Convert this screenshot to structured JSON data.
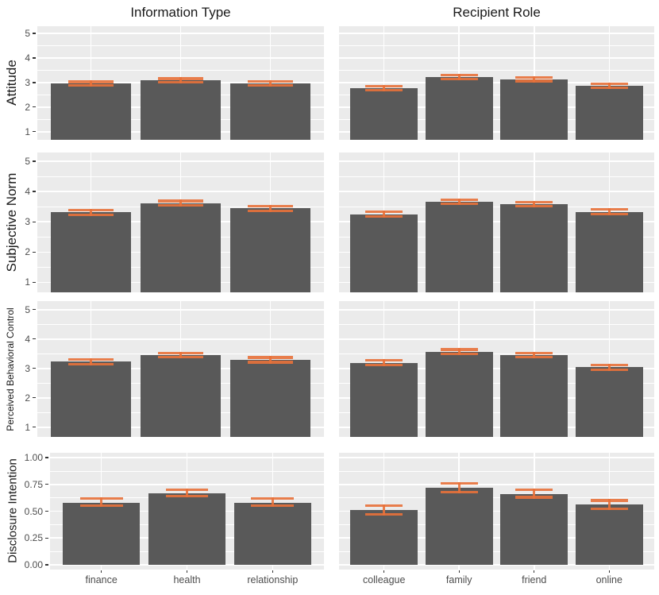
{
  "chart_data": {
    "type": "bar",
    "figure_kind": "faceted bar chart grid with mean bars and error bars (ggplot style)",
    "grid": {
      "rows": 4,
      "cols": 2
    },
    "column_titles": [
      "Information Type",
      "Recipient Role"
    ],
    "legend": "none",
    "colors": {
      "bar_fill": "#595959",
      "error_bar": "#E8713A",
      "panel_background": "#EBEBEB",
      "gridline": "#FFFFFF",
      "tick_label_text": "#4D4D4D",
      "axis_title_text": "#1A1A1A"
    },
    "x_categories": {
      "information_type": [
        "finance",
        "health",
        "relationship"
      ],
      "recipient_role": [
        "colleague",
        "family",
        "friend",
        "online"
      ]
    },
    "rows": [
      {
        "ylabel": "Attitude",
        "yticks": [
          1,
          2,
          3,
          4,
          5
        ],
        "ytick_labels": [
          "1",
          "2",
          "3",
          "4",
          "5"
        ],
        "minor_ticks": [
          1.5,
          2.5,
          3.5,
          4.5
        ],
        "ylim": [
          0.67,
          5.29
        ],
        "show_x_labels": false,
        "panels": [
          {
            "column_title": "Information Type",
            "categories": [
              "finance",
              "health",
              "relationship"
            ],
            "means": [
              2.95,
              3.09,
              2.96
            ],
            "err_low": [
              2.87,
              3.02,
              2.88
            ],
            "err_high": [
              3.03,
              3.16,
              3.04
            ]
          },
          {
            "column_title": "Recipient Role",
            "categories": [
              "colleague",
              "family",
              "friend",
              "online"
            ],
            "means": [
              2.76,
              3.22,
              3.13,
              2.87
            ],
            "err_low": [
              2.68,
              3.15,
              3.06,
              2.79
            ],
            "err_high": [
              2.84,
              3.29,
              3.2,
              2.95
            ]
          }
        ]
      },
      {
        "ylabel": "Subjective Norm",
        "yticks": [
          1,
          2,
          3,
          4,
          5
        ],
        "ytick_labels": [
          "1",
          "2",
          "3",
          "4",
          "5"
        ],
        "minor_ticks": [
          1.5,
          2.5,
          3.5,
          4.5
        ],
        "ylim": [
          0.67,
          5.29
        ],
        "show_x_labels": false,
        "panels": [
          {
            "column_title": "Information Type",
            "categories": [
              "finance",
              "health",
              "relationship"
            ],
            "means": [
              3.31,
              3.62,
              3.45
            ],
            "err_low": [
              3.23,
              3.55,
              3.37
            ],
            "err_high": [
              3.39,
              3.69,
              3.52
            ]
          },
          {
            "column_title": "Recipient Role",
            "categories": [
              "colleague",
              "family",
              "friend",
              "online"
            ],
            "means": [
              3.25,
              3.66,
              3.58,
              3.33
            ],
            "err_low": [
              3.17,
              3.59,
              3.51,
              3.25
            ],
            "err_high": [
              3.33,
              3.73,
              3.65,
              3.41
            ]
          }
        ]
      },
      {
        "ylabel": "Perceived Behavioral Control",
        "yticks": [
          1,
          2,
          3,
          4,
          5
        ],
        "ytick_labels": [
          "1",
          "2",
          "3",
          "4",
          "5"
        ],
        "minor_ticks": [
          1.5,
          2.5,
          3.5,
          4.5
        ],
        "ylim": [
          0.67,
          5.29
        ],
        "show_x_labels": false,
        "panels": [
          {
            "column_title": "Information Type",
            "categories": [
              "finance",
              "health",
              "relationship"
            ],
            "means": [
              3.23,
              3.45,
              3.29
            ],
            "err_low": [
              3.15,
              3.38,
              3.21
            ],
            "err_high": [
              3.31,
              3.52,
              3.37
            ]
          },
          {
            "column_title": "Recipient Role",
            "categories": [
              "colleague",
              "family",
              "friend",
              "online"
            ],
            "means": [
              3.19,
              3.57,
              3.46,
              3.04
            ],
            "err_low": [
              3.11,
              3.5,
              3.39,
              2.96
            ],
            "err_high": [
              3.27,
              3.64,
              3.53,
              3.12
            ]
          }
        ]
      },
      {
        "ylabel": "Disclosure Intention",
        "yticks": [
          0,
          0.25,
          0.5,
          0.75,
          1
        ],
        "ytick_labels": [
          "0.00",
          "0.25",
          "0.50",
          "0.75",
          "1.00"
        ],
        "minor_ticks": [
          0.125,
          0.375,
          0.625,
          0.875
        ],
        "ylim": [
          -0.045,
          1.045
        ],
        "bar_base": 0,
        "show_x_labels": true,
        "panels": [
          {
            "column_title": "Information Type",
            "categories": [
              "finance",
              "health",
              "relationship"
            ],
            "means": [
              0.58,
              0.67,
              0.58
            ],
            "err_low": [
              0.55,
              0.64,
              0.55
            ],
            "err_high": [
              0.62,
              0.7,
              0.62
            ]
          },
          {
            "column_title": "Recipient Role",
            "categories": [
              "colleague",
              "family",
              "friend",
              "online"
            ],
            "means": [
              0.51,
              0.72,
              0.66,
              0.56
            ],
            "err_low": [
              0.47,
              0.68,
              0.63,
              0.52
            ],
            "err_high": [
              0.55,
              0.76,
              0.7,
              0.6
            ]
          }
        ]
      }
    ]
  }
}
